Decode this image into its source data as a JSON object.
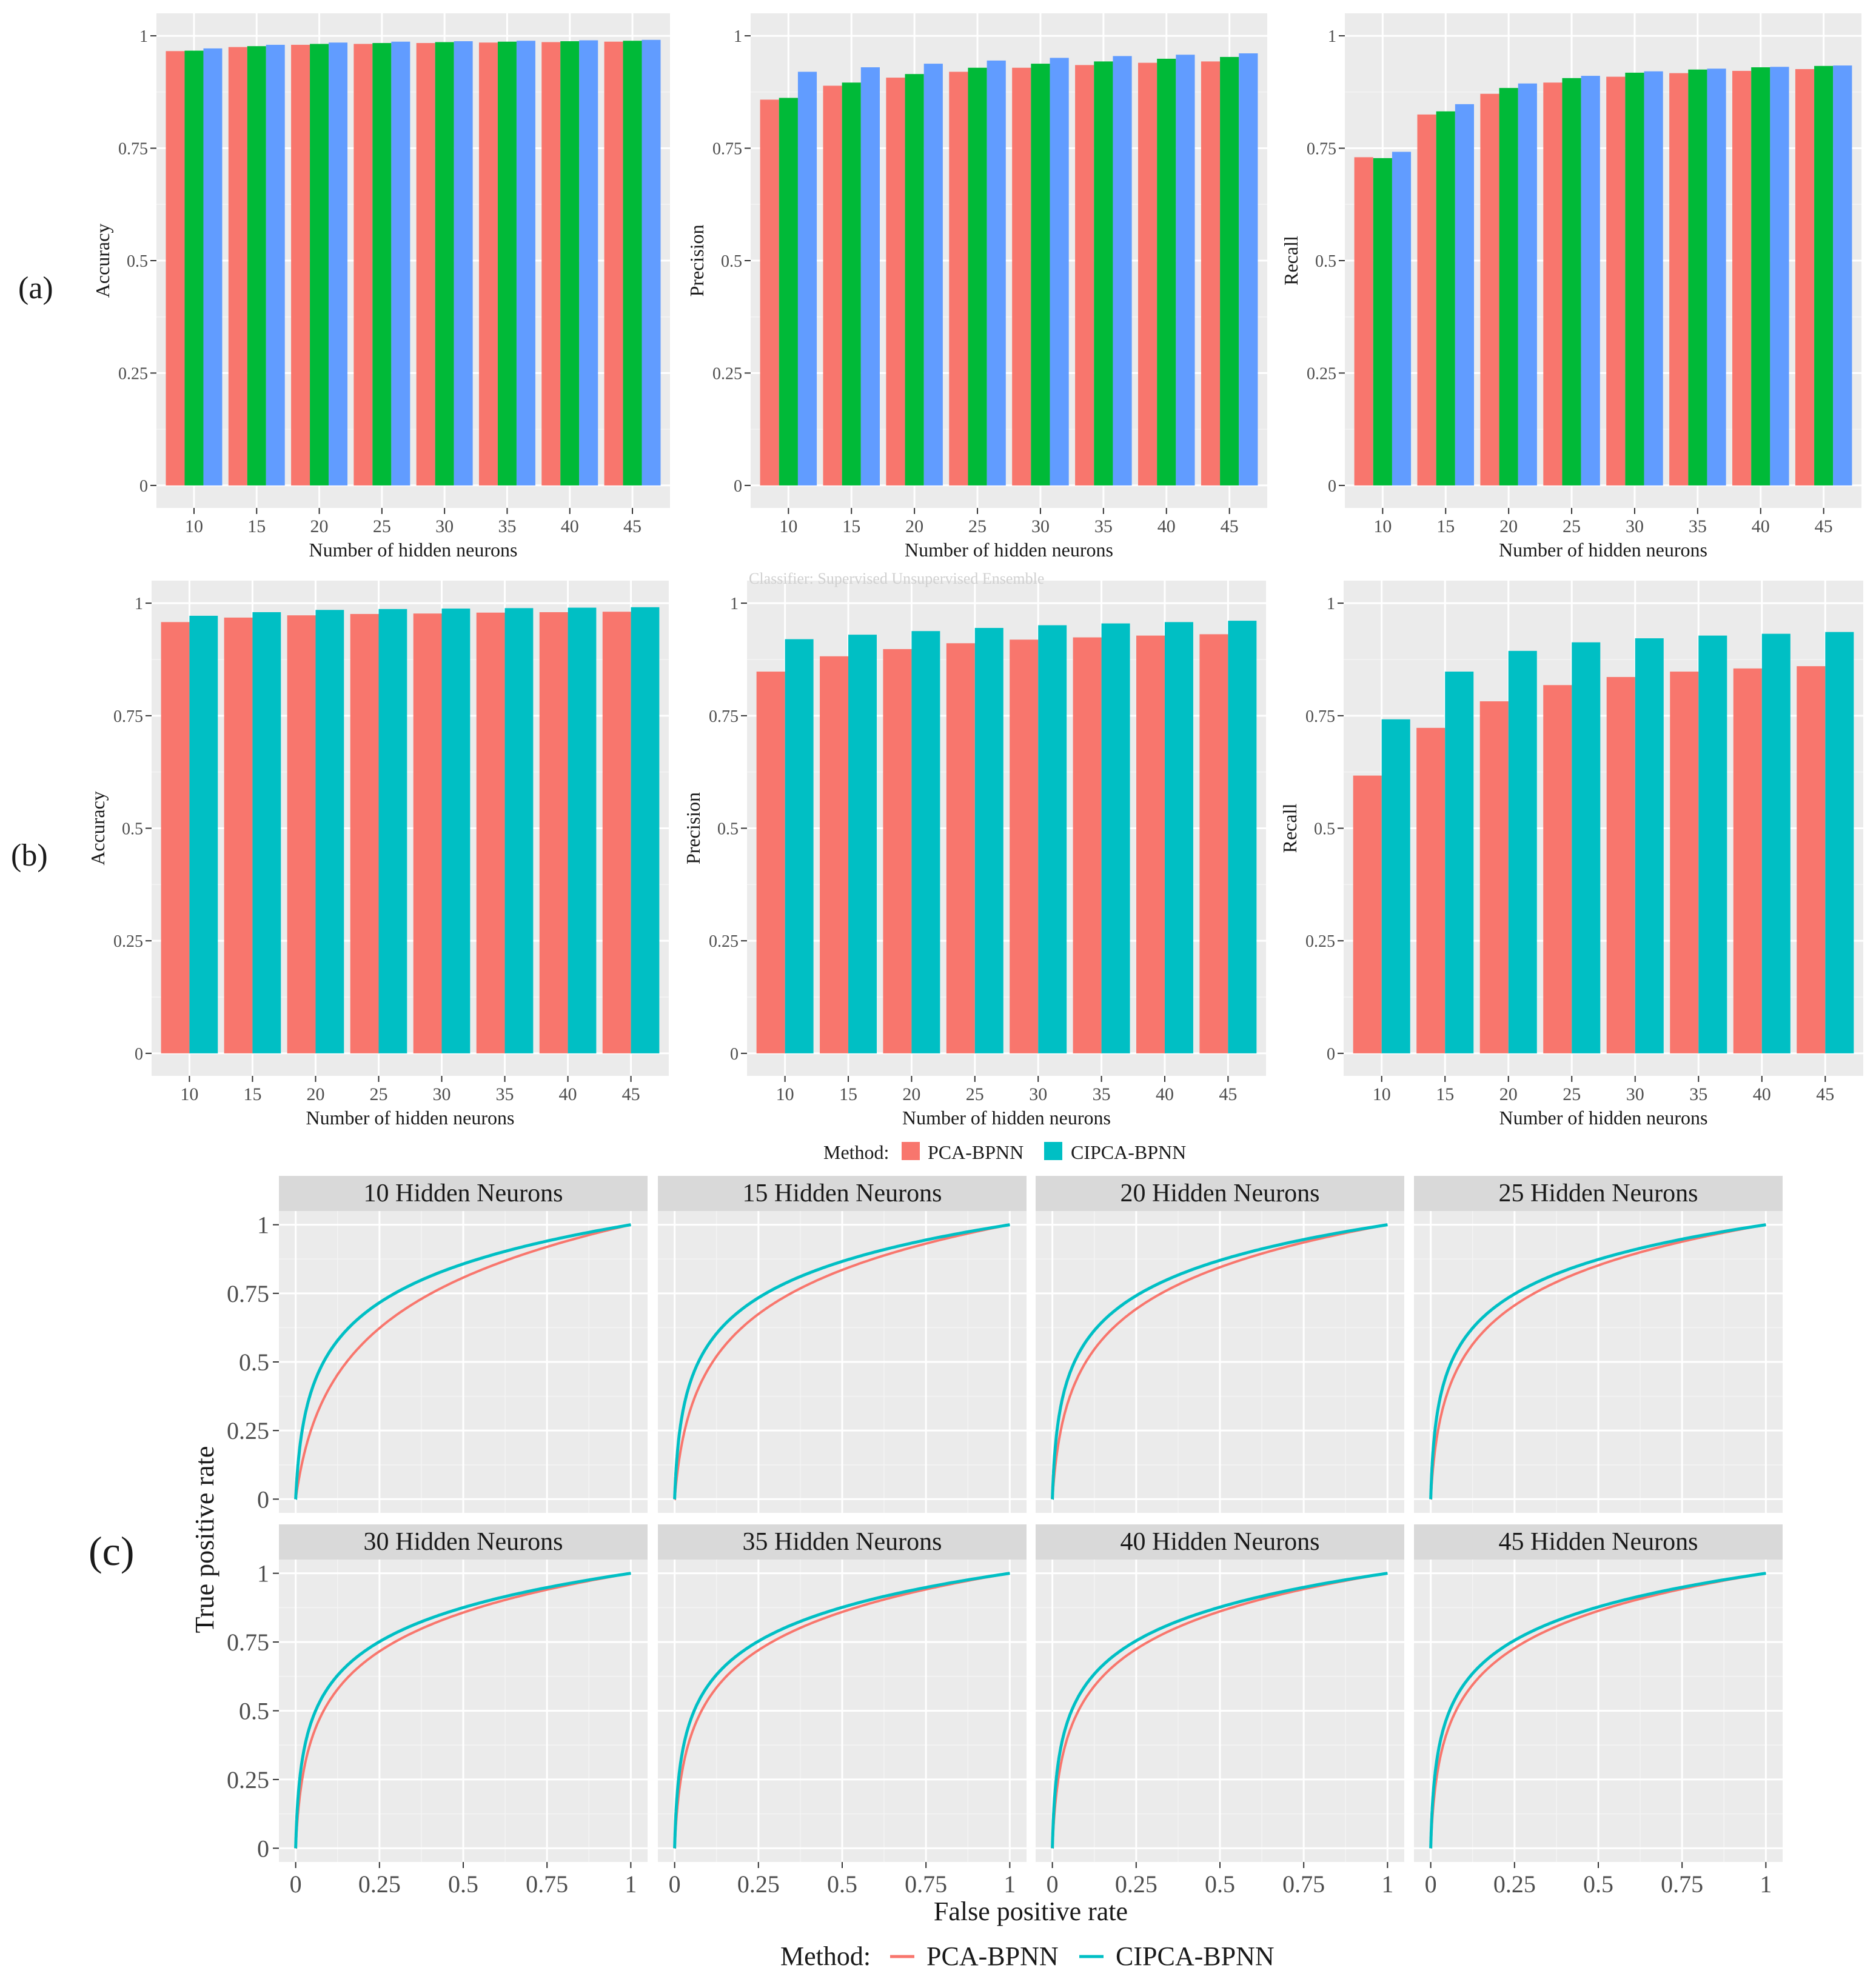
{
  "colors": {
    "panel_bg": "#EBEBEB",
    "grid_major": "#FFFFFF",
    "grid_minor": "#F4F4F4",
    "strip_bg": "#D9D9D9",
    "pca": "#F8766D",
    "cipca": "#00BFC4",
    "green": "#00BA38",
    "blue": "#619CFF",
    "text": "#1A1A1A",
    "axis_text": "#4D4D4D"
  },
  "panel_labels": {
    "a": "(a)",
    "b": "(b)",
    "c": "(c)"
  },
  "legend_bars": {
    "title": "Method:",
    "items": [
      "PCA-BPNN",
      "CIPCA-BPNN"
    ]
  },
  "legend_roc": {
    "title": "Method:",
    "items": [
      "PCA-BPNN",
      "CIPCA-BPNN"
    ]
  },
  "legend_a_partial": "Classifier:   Supervised   Unsupervised   Ensemble",
  "chart_data": [
    {
      "id": "a-accuracy",
      "type": "bar",
      "panel": "a",
      "xlabel": "Number of hidden neurons",
      "ylabel": "Accuracy",
      "ylim": [
        0,
        1
      ],
      "yticks": [
        "0",
        "0.25",
        "0.5",
        "0.75",
        "1"
      ],
      "categories": [
        "10",
        "15",
        "20",
        "25",
        "30",
        "35",
        "40",
        "45"
      ],
      "series": [
        {
          "color_key": "pca",
          "values": [
            0.966,
            0.975,
            0.98,
            0.982,
            0.984,
            0.985,
            0.986,
            0.987
          ]
        },
        {
          "color_key": "green",
          "values": [
            0.967,
            0.977,
            0.982,
            0.984,
            0.986,
            0.987,
            0.988,
            0.989
          ]
        },
        {
          "color_key": "blue",
          "values": [
            0.972,
            0.98,
            0.985,
            0.987,
            0.988,
            0.989,
            0.99,
            0.991
          ]
        }
      ]
    },
    {
      "id": "a-precision",
      "type": "bar",
      "panel": "a",
      "xlabel": "Number of hidden neurons",
      "ylabel": "Precision",
      "ylim": [
        0,
        1
      ],
      "yticks": [
        "0",
        "0.25",
        "0.5",
        "0.75",
        "1"
      ],
      "categories": [
        "10",
        "15",
        "20",
        "25",
        "30",
        "35",
        "40",
        "45"
      ],
      "series": [
        {
          "color_key": "pca",
          "values": [
            0.858,
            0.889,
            0.907,
            0.92,
            0.929,
            0.935,
            0.94,
            0.943
          ]
        },
        {
          "color_key": "green",
          "values": [
            0.862,
            0.896,
            0.915,
            0.929,
            0.938,
            0.943,
            0.949,
            0.953
          ]
        },
        {
          "color_key": "blue",
          "values": [
            0.92,
            0.93,
            0.938,
            0.945,
            0.951,
            0.955,
            0.958,
            0.961
          ]
        }
      ]
    },
    {
      "id": "a-recall",
      "type": "bar",
      "panel": "a",
      "xlabel": "Number of hidden neurons",
      "ylabel": "Recall",
      "ylim": [
        0,
        1
      ],
      "yticks": [
        "0",
        "0.25",
        "0.5",
        "0.75",
        "1"
      ],
      "categories": [
        "10",
        "15",
        "20",
        "25",
        "30",
        "35",
        "40",
        "45"
      ],
      "series": [
        {
          "color_key": "pca",
          "values": [
            0.73,
            0.825,
            0.871,
            0.896,
            0.909,
            0.917,
            0.922,
            0.926
          ]
        },
        {
          "color_key": "green",
          "values": [
            0.728,
            0.832,
            0.884,
            0.906,
            0.918,
            0.925,
            0.93,
            0.933
          ]
        },
        {
          "color_key": "blue",
          "values": [
            0.742,
            0.848,
            0.894,
            0.911,
            0.921,
            0.927,
            0.931,
            0.934
          ]
        }
      ]
    },
    {
      "id": "b-accuracy",
      "type": "bar",
      "panel": "b",
      "xlabel": "Number of hidden neurons",
      "ylabel": "Accuracy",
      "ylim": [
        0,
        1
      ],
      "yticks": [
        "0",
        "0.25",
        "0.5",
        "0.75",
        "1"
      ],
      "categories": [
        "10",
        "15",
        "20",
        "25",
        "30",
        "35",
        "40",
        "45"
      ],
      "series": [
        {
          "name": "PCA-BPNN",
          "color_key": "pca",
          "values": [
            0.958,
            0.968,
            0.973,
            0.976,
            0.977,
            0.979,
            0.98,
            0.981
          ]
        },
        {
          "name": "CIPCA-BPNN",
          "color_key": "cipca",
          "values": [
            0.972,
            0.98,
            0.985,
            0.987,
            0.988,
            0.989,
            0.99,
            0.991
          ]
        }
      ]
    },
    {
      "id": "b-precision",
      "type": "bar",
      "panel": "b",
      "xlabel": "Number of hidden neurons",
      "ylabel": "Precision",
      "ylim": [
        0,
        1
      ],
      "yticks": [
        "0",
        "0.25",
        "0.5",
        "0.75",
        "1"
      ],
      "categories": [
        "10",
        "15",
        "20",
        "25",
        "30",
        "35",
        "40",
        "45"
      ],
      "series": [
        {
          "name": "PCA-BPNN",
          "color_key": "pca",
          "values": [
            0.848,
            0.882,
            0.898,
            0.911,
            0.919,
            0.924,
            0.928,
            0.931
          ]
        },
        {
          "name": "CIPCA-BPNN",
          "color_key": "cipca",
          "values": [
            0.92,
            0.93,
            0.938,
            0.945,
            0.951,
            0.955,
            0.958,
            0.961
          ]
        }
      ]
    },
    {
      "id": "b-recall",
      "type": "bar",
      "panel": "b",
      "xlabel": "Number of hidden neurons",
      "ylabel": "Recall",
      "ylim": [
        0,
        1
      ],
      "yticks": [
        "0",
        "0.25",
        "0.5",
        "0.75",
        "1"
      ],
      "categories": [
        "10",
        "15",
        "20",
        "25",
        "30",
        "35",
        "40",
        "45"
      ],
      "series": [
        {
          "name": "PCA-BPNN",
          "color_key": "pca",
          "values": [
            0.617,
            0.723,
            0.782,
            0.818,
            0.836,
            0.848,
            0.855,
            0.86
          ]
        },
        {
          "name": "CIPCA-BPNN",
          "color_key": "cipca",
          "values": [
            0.742,
            0.848,
            0.894,
            0.913,
            0.922,
            0.928,
            0.932,
            0.936
          ]
        }
      ]
    },
    {
      "id": "c-roc",
      "type": "line",
      "panel": "c",
      "xlabel": "False positive rate",
      "ylabel": "True positive rate",
      "xlim": [
        0,
        1
      ],
      "ylim": [
        0,
        1
      ],
      "xticks": [
        "0",
        "0.25",
        "0.5",
        "0.75",
        "1"
      ],
      "yticks": [
        "0",
        "0.25",
        "0.5",
        "0.75",
        "1"
      ],
      "facets": [
        {
          "title": "10 Hidden Neurons",
          "pca_k": 30,
          "cipca_k": 120
        },
        {
          "title": "15 Hidden Neurons",
          "pca_k": 60,
          "cipca_k": 170
        },
        {
          "title": "20 Hidden Neurons",
          "pca_k": 80,
          "cipca_k": 200
        },
        {
          "title": "25 Hidden Neurons",
          "pca_k": 100,
          "cipca_k": 230
        },
        {
          "title": "30 Hidden Neurons",
          "pca_k": 120,
          "cipca_k": 250
        },
        {
          "title": "35 Hidden Neurons",
          "pca_k": 130,
          "cipca_k": 260
        },
        {
          "title": "40 Hidden Neurons",
          "pca_k": 140,
          "cipca_k": 270
        },
        {
          "title": "45 Hidden Neurons",
          "pca_k": 150,
          "cipca_k": 280
        }
      ],
      "series": [
        {
          "name": "PCA-BPNN",
          "color_key": "pca"
        },
        {
          "name": "CIPCA-BPNN",
          "color_key": "cipca"
        }
      ]
    }
  ]
}
